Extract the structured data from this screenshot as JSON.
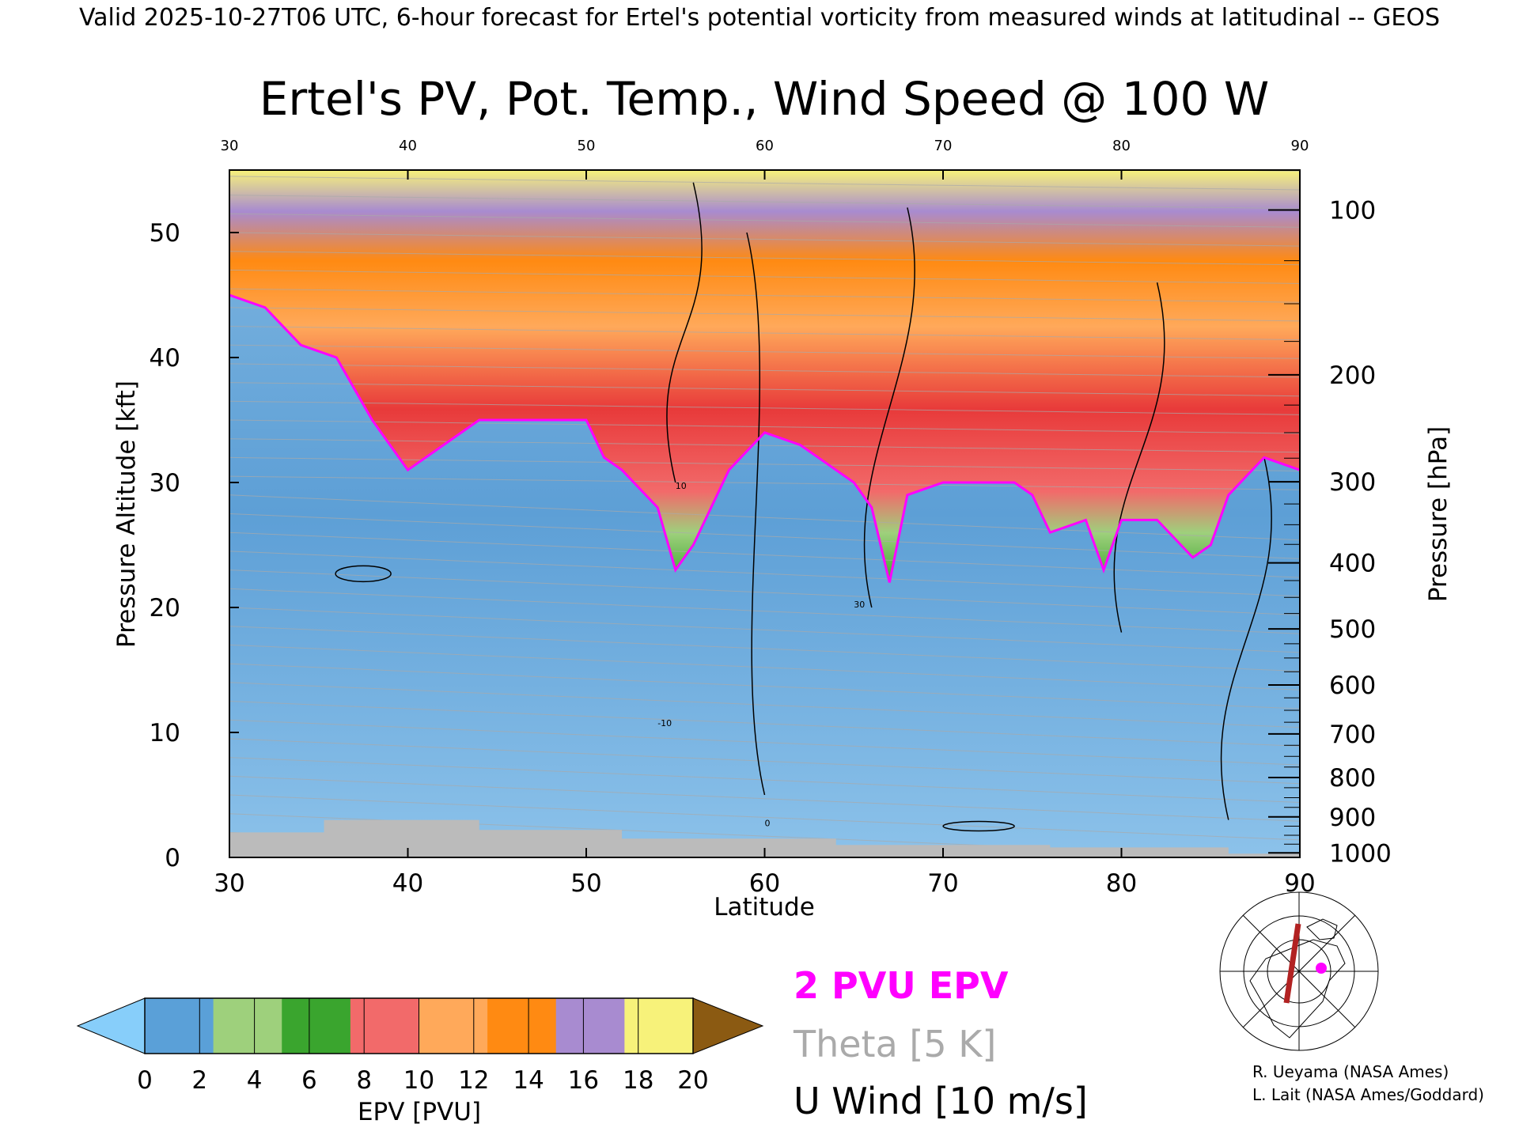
{
  "header": {
    "super_title": "Valid 2025-10-27T06 UTC, 6-hour forecast for Ertel's potential vorticity from measured winds at latitudinal -- GEOS",
    "title": "Ertel's PV, Pot. Temp., Wind Speed @ 100 W"
  },
  "colors": {
    "pv_2": "#ff00ff",
    "theta": "#aaaaaa",
    "wind": "#000000",
    "ground": "#bbbbbb"
  },
  "chart_data": {
    "type": "heatmap",
    "x": {
      "label": "Latitude",
      "range": [
        30,
        90
      ],
      "ticks": [
        30,
        40,
        50,
        60,
        70,
        80,
        90
      ]
    },
    "y_left": {
      "label": "Pressure Altitude [kft]",
      "range": [
        0,
        55
      ],
      "ticks": [
        0,
        10,
        20,
        30,
        40,
        50
      ]
    },
    "y_right": {
      "label": "Pressure [hPa]",
      "ticks": [
        100,
        200,
        300,
        400,
        500,
        600,
        700,
        800,
        900,
        1000
      ]
    },
    "colorbar": {
      "label": "EPV [PVU]",
      "ticks": [
        0,
        2,
        4,
        6,
        8,
        10,
        12,
        14,
        16,
        18,
        20
      ],
      "colors": [
        "#5aa0d8",
        "#9ed07c",
        "#3aa52e",
        "#f26a6a",
        "#ffa95a",
        "#ff8a12",
        "#a88bd0",
        "#f7f27a"
      ],
      "under_color": "#87cefa",
      "over_color": "#8b5a12"
    },
    "tropopause_2pvu": {
      "lat": [
        30,
        32,
        34,
        36,
        38,
        40,
        42,
        44,
        46,
        48,
        50,
        51,
        52,
        54,
        55,
        56,
        58,
        60,
        62,
        64,
        65,
        66,
        67,
        68,
        70,
        72,
        74,
        75,
        76,
        78,
        79,
        80,
        82,
        84,
        85,
        86,
        88,
        90
      ],
      "kft": [
        45,
        44,
        41,
        40,
        35,
        31,
        33,
        35,
        35,
        35,
        35,
        32,
        31,
        28,
        23,
        25,
        31,
        34,
        33,
        31,
        30,
        28,
        22,
        29,
        30,
        30,
        30,
        29,
        26,
        27,
        23,
        27,
        27,
        24,
        25,
        29,
        32,
        31
      ]
    },
    "wind_contour_values": [
      "0",
      "10",
      "30",
      "-10"
    ],
    "legend": {
      "pv": "2 PVU EPV",
      "theta": "Theta [5 K]",
      "wind": "U Wind [10 m/s]"
    }
  },
  "credits": {
    "line1": "R. Ueyama (NASA Ames)",
    "line2": "L. Lait (NASA Ames/Goddard)"
  }
}
